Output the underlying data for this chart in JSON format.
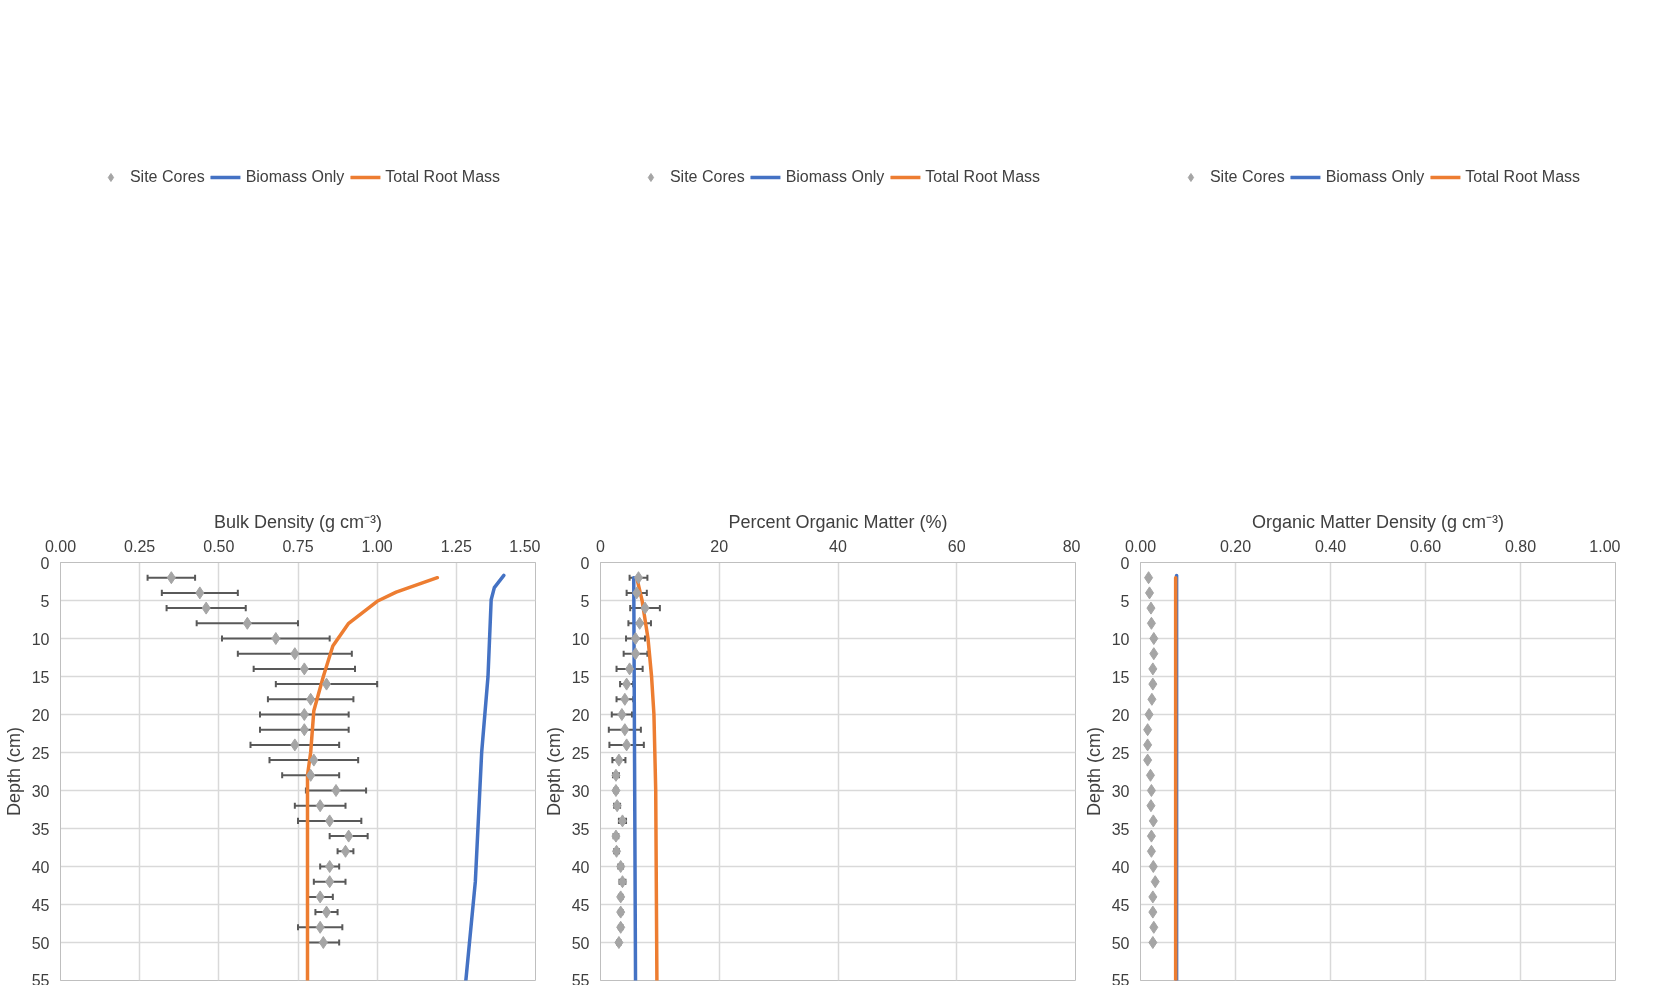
{
  "chart_data": [
    {
      "type": "scatter",
      "orientation": "horizontal",
      "xlabel": "Bulk Density (g cm⁻³)",
      "ylabel": "Depth (cm)",
      "xlim": [
        0,
        1.5
      ],
      "xticks": [
        {
          "value": 0,
          "label": "0.00"
        },
        {
          "value": 0.25,
          "label": "0.25"
        },
        {
          "value": 0.5,
          "label": "0.50"
        },
        {
          "value": 0.75,
          "label": "0.75"
        },
        {
          "value": 1,
          "label": "1.00"
        },
        {
          "value": 1.25,
          "label": "1.25"
        },
        {
          "value": 1.5,
          "label": "1.50"
        }
      ],
      "ylim": [
        55,
        0
      ],
      "yticks": [
        0,
        5,
        10,
        15,
        20,
        25,
        30,
        35,
        40,
        45,
        50,
        55
      ],
      "grid": true,
      "legend": "top",
      "series": [
        {
          "name": "Site Cores",
          "marker": "diamond",
          "color": "#a5a5a5",
          "x": [
            2,
            4,
            6,
            8,
            10,
            12,
            14,
            16,
            18,
            20,
            22,
            24,
            26,
            28,
            30,
            32,
            34,
            36,
            38,
            40,
            42,
            44,
            46,
            48,
            50
          ],
          "values": [
            0.35,
            0.44,
            0.46,
            0.59,
            0.68,
            0.74,
            0.77,
            0.84,
            0.79,
            0.77,
            0.77,
            0.74,
            0.8,
            0.79,
            0.87,
            0.82,
            0.85,
            0.91,
            0.9,
            0.85,
            0.85,
            0.82,
            0.84,
            0.82,
            0.83
          ],
          "errors": [
            0.075,
            0.12,
            0.125,
            0.16,
            0.17,
            0.18,
            0.16,
            0.16,
            0.135,
            0.14,
            0.14,
            0.14,
            0.14,
            0.09,
            0.095,
            0.08,
            0.1,
            0.06,
            0.025,
            0.03,
            0.05,
            0.04,
            0.035,
            0.07,
            0.05
          ]
        },
        {
          "name": "Biomass Only",
          "type": "line",
          "marker": "none",
          "color": "#4472c4",
          "x": [
            1.7,
            3.3,
            4.9,
            15,
            25,
            42,
            55
          ],
          "values": [
            1.4,
            1.37,
            1.36,
            1.35,
            1.33,
            1.31,
            1.28
          ]
        },
        {
          "name": "Total Root Mass",
          "type": "line",
          "marker": "none",
          "color": "#ed7d31",
          "x": [
            2,
            3.9,
            5.1,
            8,
            11,
            15,
            19.5,
            25,
            28,
            55
          ],
          "values": [
            1.19,
            1.06,
            1.0,
            0.91,
            0.86,
            0.83,
            0.8,
            0.79,
            0.78,
            0.78
          ]
        }
      ]
    },
    {
      "type": "scatter",
      "orientation": "horizontal",
      "xlabel": "Percent Organic Matter (%)",
      "ylabel": "Depth (cm)",
      "xlim": [
        0,
        80
      ],
      "xticks": [
        0,
        20,
        40,
        60,
        80
      ],
      "ylim": [
        55,
        0
      ],
      "yticks": [
        0,
        5,
        10,
        15,
        20,
        25,
        30,
        35,
        40,
        45,
        50,
        55
      ],
      "grid": true,
      "legend": "top",
      "series": [
        {
          "name": "Site Cores",
          "marker": "diamond",
          "color": "#a5a5a5",
          "x": [
            2,
            4,
            6,
            8,
            10,
            12,
            14,
            16,
            18,
            20,
            22,
            24,
            26,
            28,
            30,
            32,
            34,
            36,
            38,
            40,
            42,
            44,
            46,
            48,
            50
          ],
          "values": [
            6.4,
            6.1,
            7.5,
            6.6,
            5.9,
            5.9,
            4.9,
            4.4,
            4.1,
            3.6,
            4.1,
            4.4,
            3.1,
            2.6,
            2.6,
            2.8,
            3.7,
            2.6,
            2.7,
            3.4,
            3.7,
            3.4,
            3.4,
            3.4,
            3.1
          ],
          "errors": [
            1.5,
            1.7,
            2.5,
            1.9,
            1.6,
            2,
            2.2,
            1.1,
            1.4,
            1.7,
            2.7,
            2.9,
            1.1,
            0.5,
            0.3,
            0.5,
            0.6,
            0.4,
            0.4,
            0.4,
            0.5,
            0.3,
            0.3,
            0.3,
            0.3
          ]
        },
        {
          "name": "Biomass Only",
          "type": "line",
          "marker": "none",
          "color": "#4472c4",
          "x": [
            2,
            55
          ],
          "values": [
            5.6,
            5.9
          ]
        },
        {
          "name": "Total Root Mass",
          "type": "line",
          "marker": "none",
          "color": "#ed7d31",
          "x": [
            2,
            5,
            10,
            15,
            20,
            30,
            55
          ],
          "values": [
            6.1,
            7.0,
            8.0,
            8.6,
            9.0,
            9.3,
            9.5
          ]
        }
      ]
    },
    {
      "type": "scatter",
      "orientation": "horizontal",
      "xlabel": "Organic Matter Density (g cm⁻³)",
      "ylabel": "Depth (cm)",
      "xlim": [
        0,
        1
      ],
      "xticks": [
        {
          "value": 0,
          "label": "0.00"
        },
        {
          "value": 0.2,
          "label": "0.20"
        },
        {
          "value": 0.4,
          "label": "0.40"
        },
        {
          "value": 0.6,
          "label": "0.60"
        },
        {
          "value": 0.8,
          "label": "0.80"
        },
        {
          "value": 1,
          "label": "1.00"
        }
      ],
      "ylim": [
        55,
        0
      ],
      "yticks": [
        0,
        5,
        10,
        15,
        20,
        25,
        30,
        35,
        40,
        45,
        50,
        55
      ],
      "grid": true,
      "legend": "top",
      "series": [
        {
          "name": "Site Cores",
          "marker": "diamond",
          "color": "#a5a5a5",
          "x": [
            2,
            4,
            6,
            8,
            10,
            12,
            14,
            16,
            18,
            20,
            22,
            24,
            26,
            28,
            30,
            32,
            34,
            36,
            38,
            40,
            42,
            44,
            46,
            48,
            50
          ],
          "values": [
            0.017,
            0.019,
            0.022,
            0.023,
            0.028,
            0.028,
            0.026,
            0.026,
            0.024,
            0.018,
            0.015,
            0.015,
            0.015,
            0.021,
            0.023,
            0.022,
            0.027,
            0.023,
            0.023,
            0.027,
            0.031,
            0.026,
            0.026,
            0.028,
            0.026
          ]
        },
        {
          "name": "Biomass Only",
          "type": "line",
          "marker": "none",
          "color": "#4472c4",
          "x": [
            1.7,
            55
          ],
          "values": [
            0.076,
            0.076
          ]
        },
        {
          "name": "Total Root Mass",
          "type": "line",
          "marker": "none",
          "color": "#ed7d31",
          "x": [
            2,
            55
          ],
          "values": [
            0.074,
            0.074
          ]
        }
      ]
    }
  ]
}
